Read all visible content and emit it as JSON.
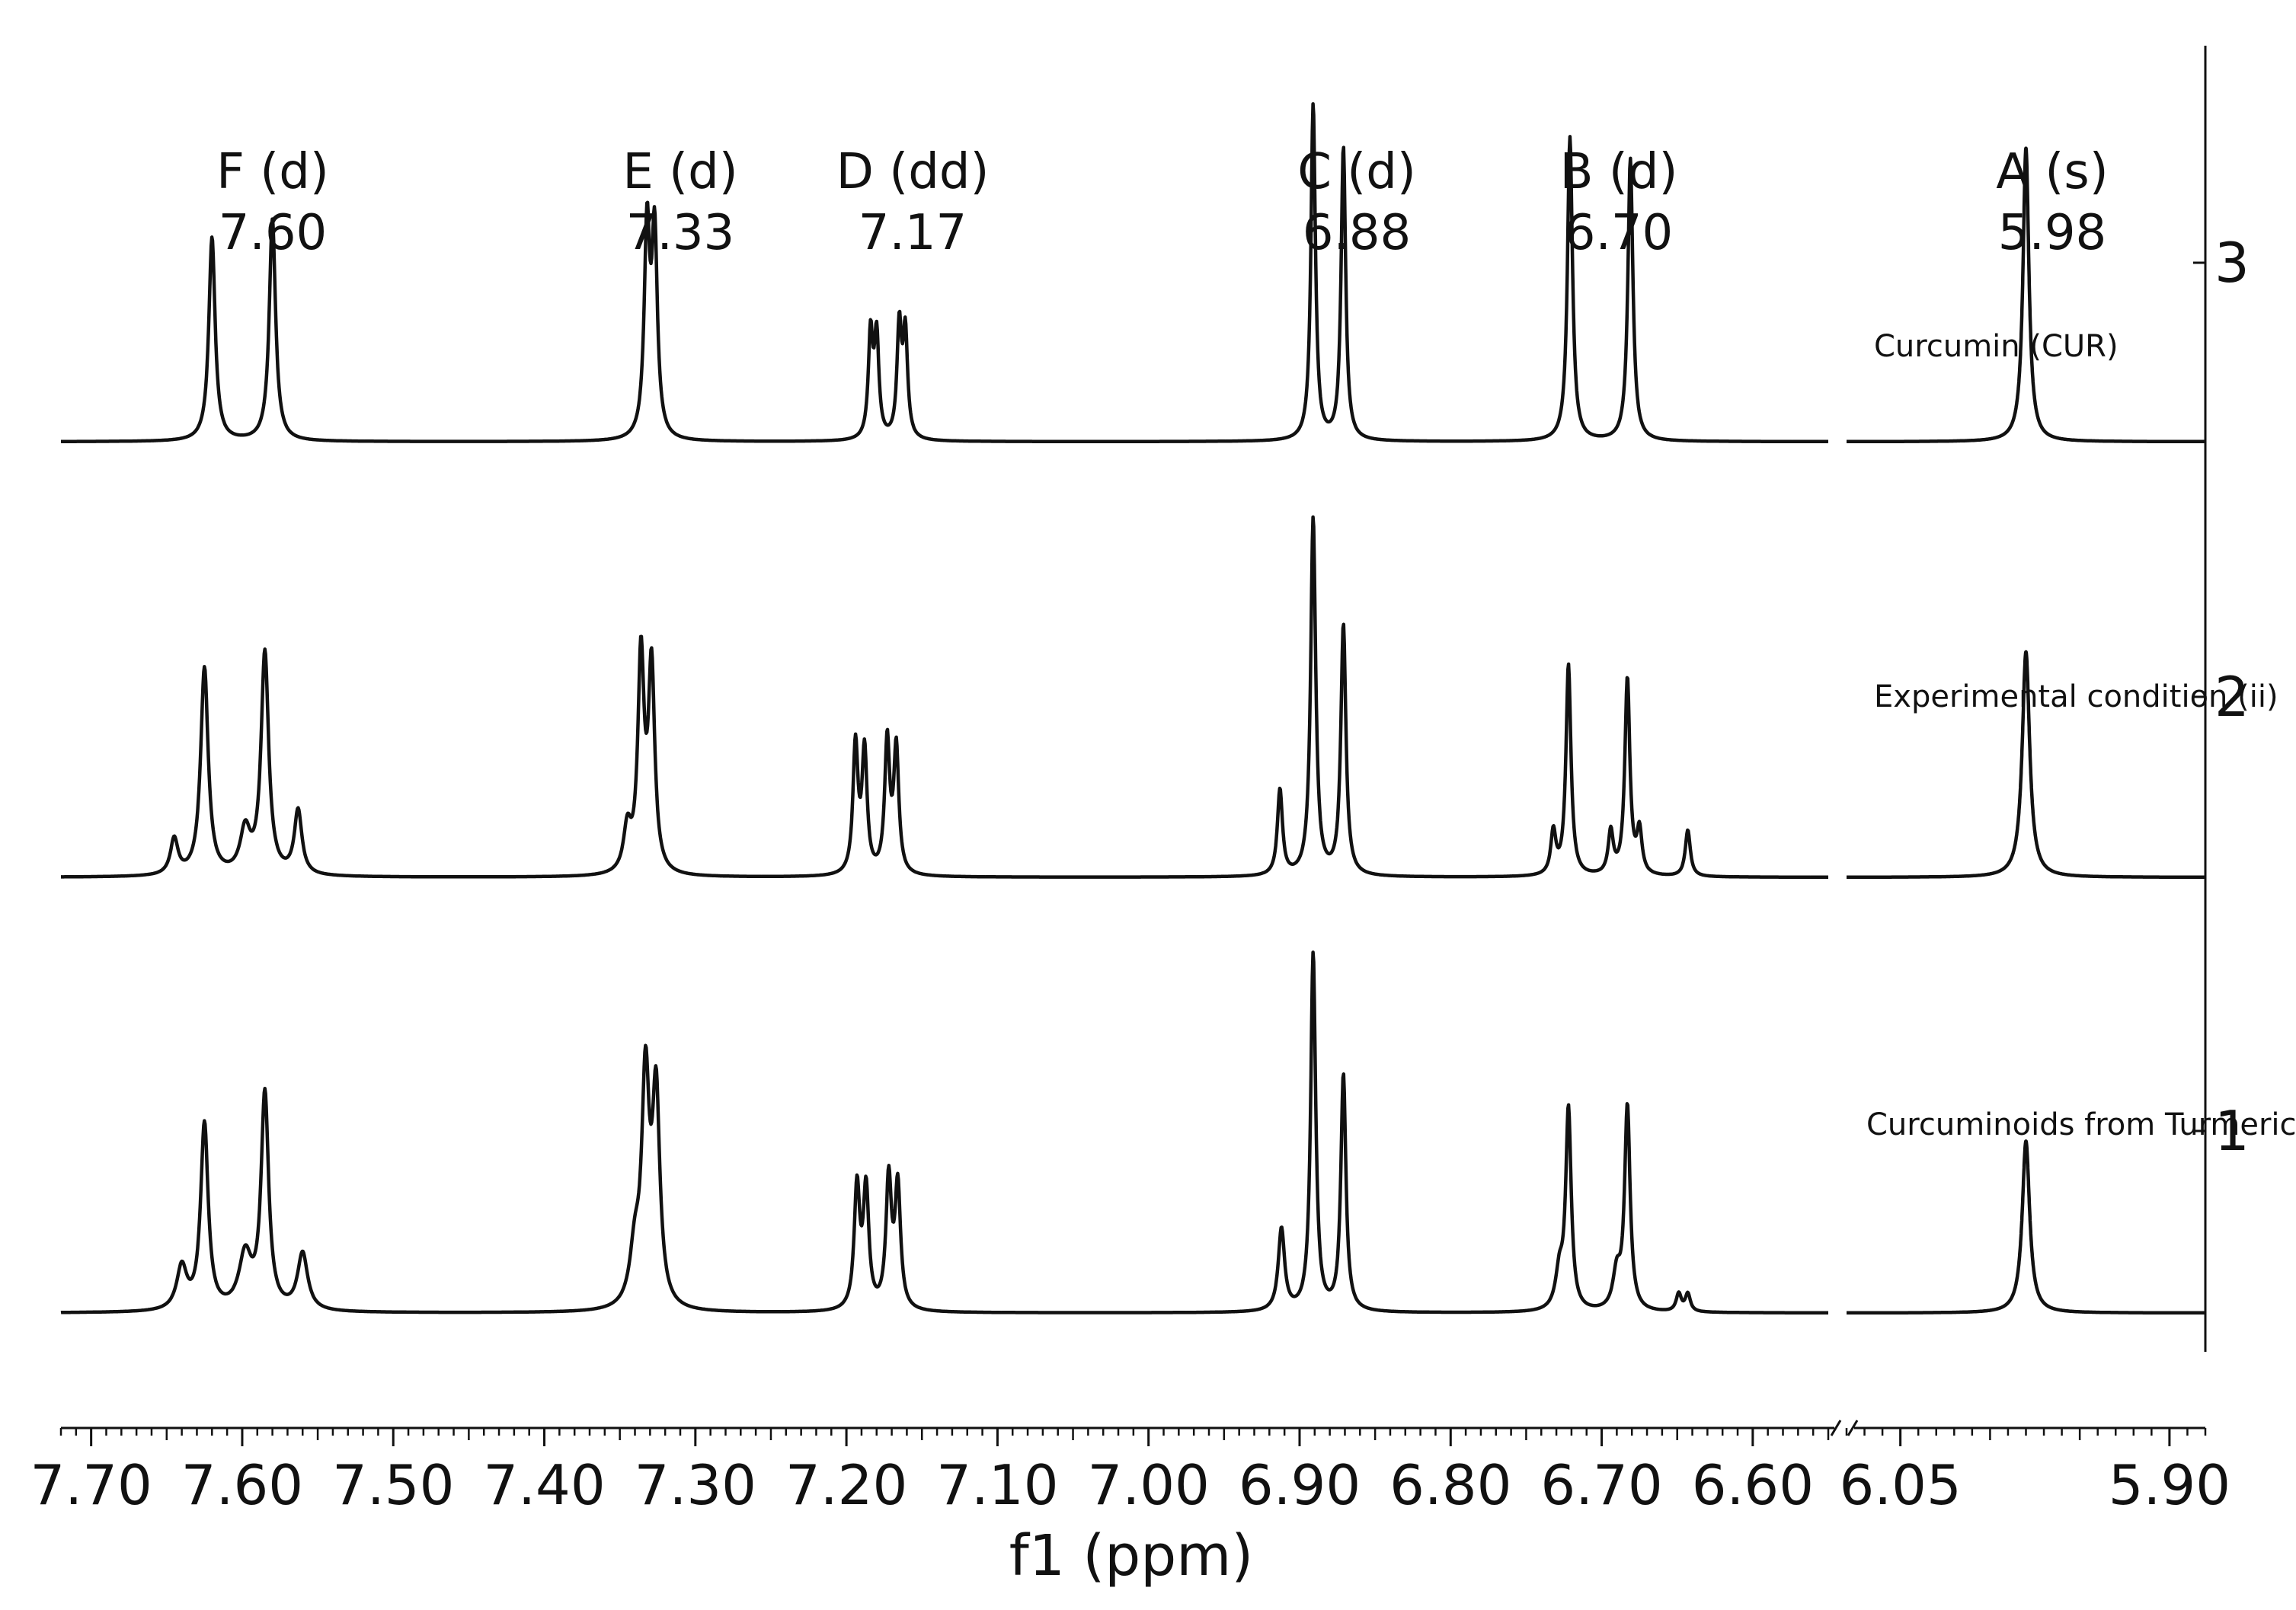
{
  "chart_data": {
    "type": "line",
    "xlabel": "f1 (ppm)",
    "x_axis": {
      "reversed": true,
      "broken": true,
      "segments": [
        {
          "range": [
            7.72,
            6.55
          ],
          "ticks": [
            7.7,
            7.6,
            7.5,
            7.4,
            7.3,
            7.2,
            7.1,
            7.0,
            6.9,
            6.8,
            6.7,
            6.6
          ]
        },
        {
          "range": [
            6.08,
            5.88
          ],
          "ticks": [
            6.05,
            5.9
          ]
        }
      ],
      "tick_labels": [
        "7.70",
        "7.60",
        "7.50",
        "7.40",
        "7.30",
        "7.20",
        "7.10",
        "7.00",
        "6.90",
        "6.80",
        "6.70",
        "6.60",
        "6.05",
        "5.90"
      ]
    },
    "right_axis": {
      "ticks": [
        1,
        2,
        3
      ],
      "tick_labels": [
        "1",
        "2",
        "3"
      ]
    },
    "peak_annotations": [
      {
        "label": "F (d)",
        "value": "7.60",
        "ppm": 7.6
      },
      {
        "label": "E (d)",
        "value": "7.33",
        "ppm": 7.33
      },
      {
        "label": "D (dd)",
        "value": "7.17",
        "ppm": 7.17
      },
      {
        "label": "C (d)",
        "value": "6.88",
        "ppm": 6.88
      },
      {
        "label": "B (d)",
        "value": "6.70",
        "ppm": 6.7
      },
      {
        "label": "A (s)",
        "value": "5.98",
        "ppm": 5.98
      }
    ],
    "series": [
      {
        "name": "Curcumin (CUR)",
        "offset": 3,
        "peaks": [
          {
            "ppm": 7.62,
            "h": 0.57,
            "w": 0.0025
          },
          {
            "ppm": 7.58,
            "h": 0.62,
            "w": 0.0025
          },
          {
            "ppm": 7.332,
            "h": 0.58,
            "w": 0.0022
          },
          {
            "ppm": 7.327,
            "h": 0.56,
            "w": 0.0022
          },
          {
            "ppm": 7.184,
            "h": 0.29,
            "w": 0.0018
          },
          {
            "ppm": 7.18,
            "h": 0.28,
            "w": 0.0018
          },
          {
            "ppm": 7.165,
            "h": 0.31,
            "w": 0.0018
          },
          {
            "ppm": 7.161,
            "h": 0.29,
            "w": 0.0018
          },
          {
            "ppm": 6.891,
            "h": 0.94,
            "w": 0.0018
          },
          {
            "ppm": 6.871,
            "h": 0.82,
            "w": 0.0018
          },
          {
            "ppm": 6.721,
            "h": 0.85,
            "w": 0.002
          },
          {
            "ppm": 6.681,
            "h": 0.79,
            "w": 0.002
          },
          {
            "ppm": 5.98,
            "h": 0.82,
            "w": 0.002
          }
        ]
      },
      {
        "name": "Experimental condition (ii)",
        "offset": 2,
        "peaks": [
          {
            "ppm": 7.645,
            "h": 0.1,
            "w": 0.003
          },
          {
            "ppm": 7.625,
            "h": 0.58,
            "w": 0.003
          },
          {
            "ppm": 7.598,
            "h": 0.12,
            "w": 0.004
          },
          {
            "ppm": 7.585,
            "h": 0.62,
            "w": 0.003
          },
          {
            "ppm": 7.563,
            "h": 0.18,
            "w": 0.003
          },
          {
            "ppm": 7.345,
            "h": 0.12,
            "w": 0.003
          },
          {
            "ppm": 7.336,
            "h": 0.6,
            "w": 0.0025
          },
          {
            "ppm": 7.329,
            "h": 0.57,
            "w": 0.0025
          },
          {
            "ppm": 7.194,
            "h": 0.36,
            "w": 0.002
          },
          {
            "ppm": 7.188,
            "h": 0.34,
            "w": 0.002
          },
          {
            "ppm": 7.173,
            "h": 0.37,
            "w": 0.002
          },
          {
            "ppm": 7.167,
            "h": 0.35,
            "w": 0.002
          },
          {
            "ppm": 6.913,
            "h": 0.24,
            "w": 0.002
          },
          {
            "ppm": 6.891,
            "h": 1.0,
            "w": 0.002
          },
          {
            "ppm": 6.871,
            "h": 0.7,
            "w": 0.002
          },
          {
            "ppm": 6.732,
            "h": 0.12,
            "w": 0.002
          },
          {
            "ppm": 6.722,
            "h": 0.59,
            "w": 0.002
          },
          {
            "ppm": 6.694,
            "h": 0.12,
            "w": 0.002
          },
          {
            "ppm": 6.683,
            "h": 0.55,
            "w": 0.002
          },
          {
            "ppm": 6.675,
            "h": 0.12,
            "w": 0.002
          },
          {
            "ppm": 6.643,
            "h": 0.13,
            "w": 0.002
          },
          {
            "ppm": 5.98,
            "h": 0.63,
            "w": 0.0025
          }
        ]
      },
      {
        "name": "Curcuminoids from Turmeric",
        "offset": 1,
        "peaks": [
          {
            "ppm": 7.64,
            "h": 0.12,
            "w": 0.004
          },
          {
            "ppm": 7.625,
            "h": 0.52,
            "w": 0.003
          },
          {
            "ppm": 7.598,
            "h": 0.15,
            "w": 0.005
          },
          {
            "ppm": 7.585,
            "h": 0.6,
            "w": 0.003
          },
          {
            "ppm": 7.56,
            "h": 0.16,
            "w": 0.004
          },
          {
            "ppm": 7.34,
            "h": 0.15,
            "w": 0.004
          },
          {
            "ppm": 7.333,
            "h": 0.62,
            "w": 0.003
          },
          {
            "ppm": 7.326,
            "h": 0.58,
            "w": 0.003
          },
          {
            "ppm": 7.193,
            "h": 0.34,
            "w": 0.0022
          },
          {
            "ppm": 7.187,
            "h": 0.33,
            "w": 0.0022
          },
          {
            "ppm": 7.172,
            "h": 0.36,
            "w": 0.0022
          },
          {
            "ppm": 7.166,
            "h": 0.34,
            "w": 0.0022
          },
          {
            "ppm": 6.912,
            "h": 0.23,
            "w": 0.0025
          },
          {
            "ppm": 6.891,
            "h": 1.0,
            "w": 0.002
          },
          {
            "ppm": 6.871,
            "h": 0.66,
            "w": 0.002
          },
          {
            "ppm": 6.728,
            "h": 0.1,
            "w": 0.003
          },
          {
            "ppm": 6.722,
            "h": 0.56,
            "w": 0.0022
          },
          {
            "ppm": 6.69,
            "h": 0.1,
            "w": 0.003
          },
          {
            "ppm": 6.683,
            "h": 0.57,
            "w": 0.0022
          },
          {
            "ppm": 6.649,
            "h": 0.05,
            "w": 0.002
          },
          {
            "ppm": 6.643,
            "h": 0.05,
            "w": 0.002
          },
          {
            "ppm": 5.98,
            "h": 0.48,
            "w": 0.0025
          }
        ]
      }
    ]
  }
}
